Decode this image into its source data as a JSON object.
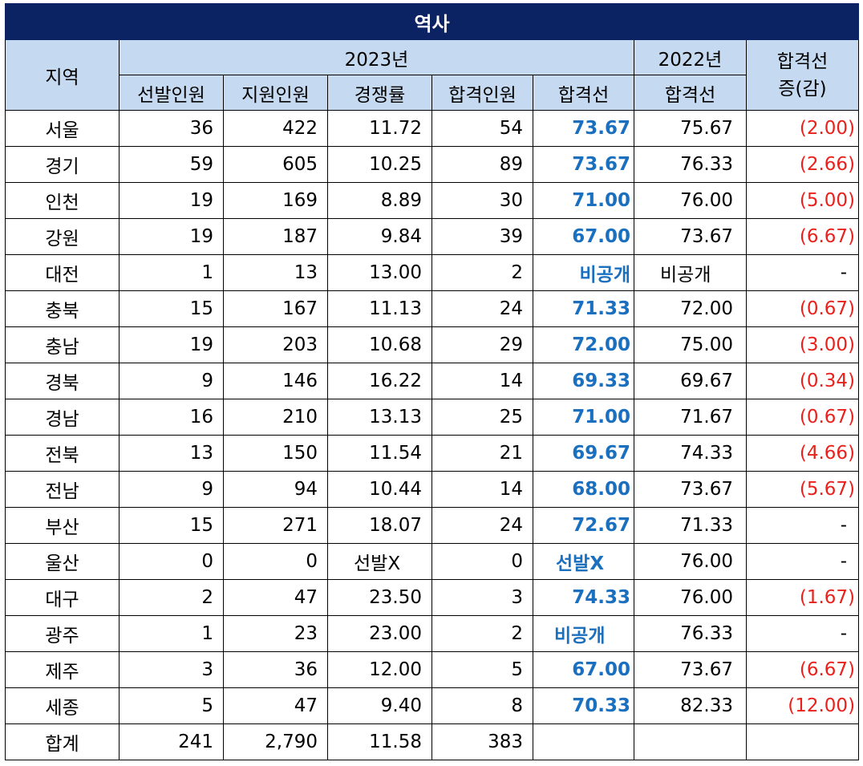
{
  "title": "역사",
  "header": {
    "region": "지역",
    "year_2023": "2023년",
    "year_2022": "2022년",
    "change_line1": "합격선",
    "change_line2": "증(감)",
    "cols": [
      "선발인원",
      "지원인원",
      "경쟁률",
      "합격인원",
      "합격선"
    ],
    "col_2022": "합격선"
  },
  "rows": [
    {
      "region": "서울",
      "select": "36",
      "apply": "422",
      "ratio": "11.72",
      "pass": "54",
      "cut": "73.67",
      "prev": "75.67",
      "diff": "(2.00)"
    },
    {
      "region": "경기",
      "select": "59",
      "apply": "605",
      "ratio": "10.25",
      "pass": "89",
      "cut": "73.67",
      "prev": "76.33",
      "diff": "(2.66)"
    },
    {
      "region": "인천",
      "select": "19",
      "apply": "169",
      "ratio": "8.89",
      "pass": "30",
      "cut": "71.00",
      "prev": "76.00",
      "diff": "(5.00)"
    },
    {
      "region": "강원",
      "select": "19",
      "apply": "187",
      "ratio": "9.84",
      "pass": "39",
      "cut": "67.00",
      "prev": "73.67",
      "diff": "(6.67)"
    },
    {
      "region": "대전",
      "select": "1",
      "apply": "13",
      "ratio": "13.00",
      "pass": "2",
      "cut": "비공개",
      "prev": "비공개",
      "diff": "-"
    },
    {
      "region": "충북",
      "select": "15",
      "apply": "167",
      "ratio": "11.13",
      "pass": "24",
      "cut": "71.33",
      "prev": "72.00",
      "diff": "(0.67)"
    },
    {
      "region": "충남",
      "select": "19",
      "apply": "203",
      "ratio": "10.68",
      "pass": "29",
      "cut": "72.00",
      "prev": "75.00",
      "diff": "(3.00)"
    },
    {
      "region": "경북",
      "select": "9",
      "apply": "146",
      "ratio": "16.22",
      "pass": "14",
      "cut": "69.33",
      "prev": "69.67",
      "diff": "(0.34)"
    },
    {
      "region": "경남",
      "select": "16",
      "apply": "210",
      "ratio": "13.13",
      "pass": "25",
      "cut": "71.00",
      "prev": "71.67",
      "diff": "(0.67)"
    },
    {
      "region": "전북",
      "select": "13",
      "apply": "150",
      "ratio": "11.54",
      "pass": "21",
      "cut": "69.67",
      "prev": "74.33",
      "diff": "(4.66)"
    },
    {
      "region": "전남",
      "select": "9",
      "apply": "94",
      "ratio": "10.44",
      "pass": "14",
      "cut": "68.00",
      "prev": "73.67",
      "diff": "(5.67)"
    },
    {
      "region": "부산",
      "select": "15",
      "apply": "271",
      "ratio": "18.07",
      "pass": "24",
      "cut": "72.67",
      "prev": "71.33",
      "diff": "-"
    },
    {
      "region": "울산",
      "select": "0",
      "apply": "0",
      "ratio": "선발X",
      "pass": "0",
      "cut": "선발X",
      "prev": "76.00",
      "diff": "-"
    },
    {
      "region": "대구",
      "select": "2",
      "apply": "47",
      "ratio": "23.50",
      "pass": "3",
      "cut": "74.33",
      "prev": "76.00",
      "diff": "(1.67)"
    },
    {
      "region": "광주",
      "select": "1",
      "apply": "23",
      "ratio": "23.00",
      "pass": "2",
      "cut": "비공개",
      "prev": "76.33",
      "diff": "-"
    },
    {
      "region": "제주",
      "select": "3",
      "apply": "36",
      "ratio": "12.00",
      "pass": "5",
      "cut": "67.00",
      "prev": "73.67",
      "diff": "(6.67)"
    },
    {
      "region": "세종",
      "select": "5",
      "apply": "47",
      "ratio": "9.40",
      "pass": "8",
      "cut": "70.33",
      "prev": "82.33",
      "diff": "(12.00)"
    }
  ],
  "total": {
    "region": "합계",
    "select": "241",
    "apply": "2,790",
    "ratio": "11.58",
    "pass": "383"
  },
  "colors": {
    "title_bg": "#0b2363",
    "header_bg": "#c5daf0",
    "cut_text": "#1a6fbf",
    "negative_text": "#e8211c"
  }
}
